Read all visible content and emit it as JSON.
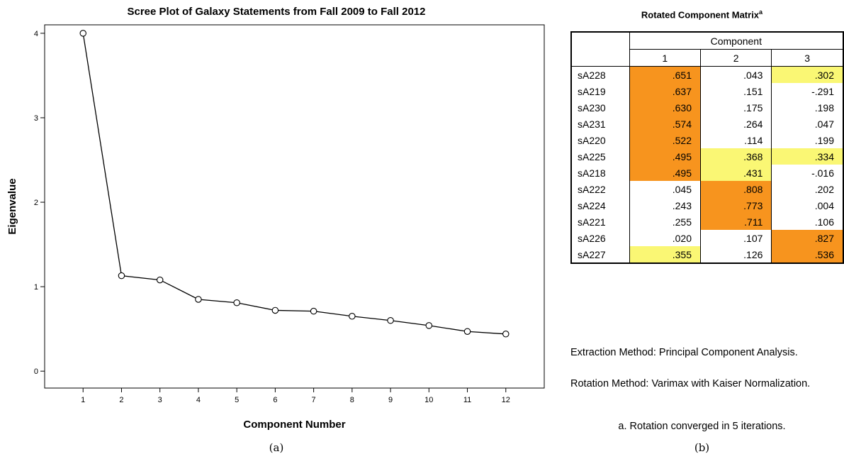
{
  "chart_data": {
    "type": "line",
    "title": "Scree Plot of Galaxy Statements from Fall 2009 to Fall 2012",
    "xlabel": "Component Number",
    "ylabel": "Eigenvalue",
    "x": [
      1,
      2,
      3,
      4,
      5,
      6,
      7,
      8,
      9,
      10,
      11,
      12
    ],
    "y": [
      4.0,
      1.13,
      1.08,
      0.85,
      0.81,
      0.72,
      0.71,
      0.65,
      0.6,
      0.54,
      0.47,
      0.44
    ],
    "xlim": [
      0,
      13
    ],
    "ylim": [
      -0.2,
      4.1
    ],
    "yticks": [
      0,
      1,
      2,
      3,
      4
    ],
    "marker": "open-circle",
    "grid": false
  },
  "captions": {
    "a": "(a)",
    "b": "(b)"
  },
  "table": {
    "title": "Rotated Component Matrix",
    "title_sup": "a",
    "group_header": "Component",
    "columns": [
      "1",
      "2",
      "3"
    ],
    "rows": [
      {
        "label": "sA228",
        "values": [
          ".651",
          ".043",
          ".302"
        ],
        "shade": [
          "hi",
          "",
          "md"
        ]
      },
      {
        "label": "sA219",
        "values": [
          ".637",
          ".151",
          "-.291"
        ],
        "shade": [
          "hi",
          "",
          ""
        ]
      },
      {
        "label": "sA230",
        "values": [
          ".630",
          ".175",
          ".198"
        ],
        "shade": [
          "hi",
          "",
          ""
        ]
      },
      {
        "label": "sA231",
        "values": [
          ".574",
          ".264",
          ".047"
        ],
        "shade": [
          "hi",
          "",
          ""
        ]
      },
      {
        "label": "sA220",
        "values": [
          ".522",
          ".114",
          ".199"
        ],
        "shade": [
          "hi",
          "",
          ""
        ]
      },
      {
        "label": "sA225",
        "values": [
          ".495",
          ".368",
          ".334"
        ],
        "shade": [
          "hi",
          "md",
          "md"
        ]
      },
      {
        "label": "sA218",
        "values": [
          ".495",
          ".431",
          "-.016"
        ],
        "shade": [
          "hi",
          "md",
          ""
        ]
      },
      {
        "label": "sA222",
        "values": [
          ".045",
          ".808",
          ".202"
        ],
        "shade": [
          "",
          "hi",
          ""
        ]
      },
      {
        "label": "sA224",
        "values": [
          ".243",
          ".773",
          ".004"
        ],
        "shade": [
          "",
          "hi",
          ""
        ]
      },
      {
        "label": "sA221",
        "values": [
          ".255",
          ".711",
          ".106"
        ],
        "shade": [
          "",
          "hi",
          ""
        ]
      },
      {
        "label": "sA226",
        "values": [
          ".020",
          ".107",
          ".827"
        ],
        "shade": [
          "",
          "",
          "hi"
        ]
      },
      {
        "label": "sA227",
        "values": [
          ".355",
          ".126",
          ".536"
        ],
        "shade": [
          "md",
          "",
          "hi"
        ]
      }
    ],
    "shade_colors": {
      "hi": "#f7941e",
      "md": "#faf774"
    },
    "notes": {
      "extraction": "Extraction Method: Principal Component Analysis.",
      "rotation": " Rotation Method: Varimax with Kaiser Normalization.",
      "footnote": "a. Rotation converged in 5 iterations."
    }
  }
}
